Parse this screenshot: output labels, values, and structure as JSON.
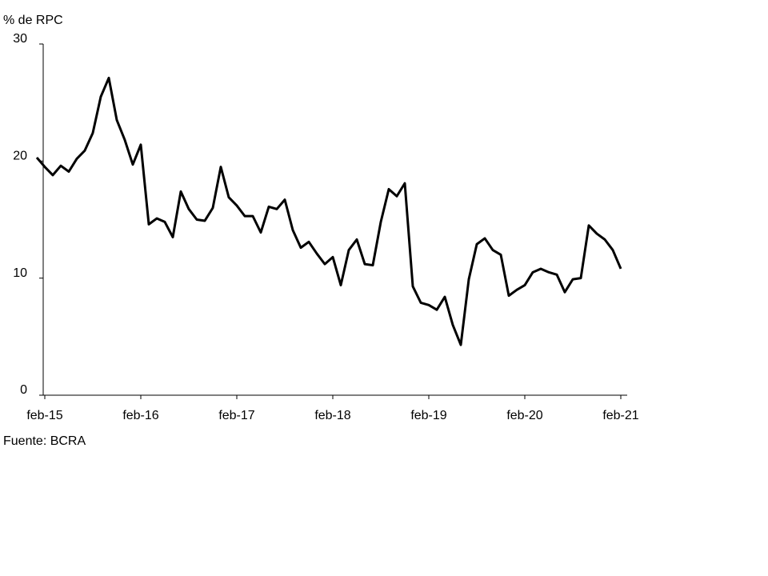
{
  "chart_data": {
    "type": "line",
    "title": "% de RPC",
    "source": "Fuente: BCRA",
    "categories": [
      null,
      "feb-15",
      null,
      null,
      null,
      null,
      null,
      null,
      null,
      null,
      null,
      null,
      null,
      "feb-16",
      null,
      null,
      null,
      null,
      null,
      null,
      null,
      null,
      null,
      null,
      null,
      "feb-17",
      null,
      null,
      null,
      null,
      null,
      null,
      null,
      null,
      null,
      null,
      null,
      "feb-18",
      null,
      null,
      null,
      null,
      null,
      null,
      null,
      null,
      null,
      null,
      null,
      "feb-19",
      null,
      null,
      null,
      null,
      null,
      null,
      null,
      null,
      null,
      null,
      null,
      "feb-20",
      null,
      null,
      null,
      null,
      null,
      null,
      null,
      null,
      null,
      null,
      null,
      "feb-21"
    ],
    "series": [
      {
        "name": "% de RPC",
        "color": "#000000",
        "values": [
          20.3,
          19.5,
          18.8,
          19.6,
          19.1,
          20.2,
          20.9,
          22.4,
          25.5,
          27.1,
          23.5,
          21.8,
          19.7,
          21.4,
          14.6,
          15.1,
          14.8,
          13.5,
          17.4,
          15.9,
          15.0,
          14.9,
          16.0,
          19.5,
          16.9,
          16.2,
          15.3,
          15.3,
          13.9,
          16.1,
          15.9,
          16.7,
          14.1,
          12.6,
          13.1,
          12.1,
          11.2,
          11.8,
          9.4,
          12.4,
          13.3,
          11.2,
          11.1,
          14.8,
          17.6,
          17.0,
          18.1,
          9.3,
          7.9,
          7.7,
          7.3,
          8.4,
          6.0,
          4.3,
          9.9,
          12.9,
          13.4,
          12.4,
          12.0,
          8.5,
          9.0,
          9.4,
          10.5,
          10.8,
          10.5,
          10.3,
          8.8,
          9.9,
          10.0,
          14.5,
          13.8,
          13.3,
          12.4,
          10.8
        ]
      }
    ],
    "ylim": [
      0,
      30
    ],
    "yticks": [
      0,
      10,
      20,
      30
    ]
  }
}
